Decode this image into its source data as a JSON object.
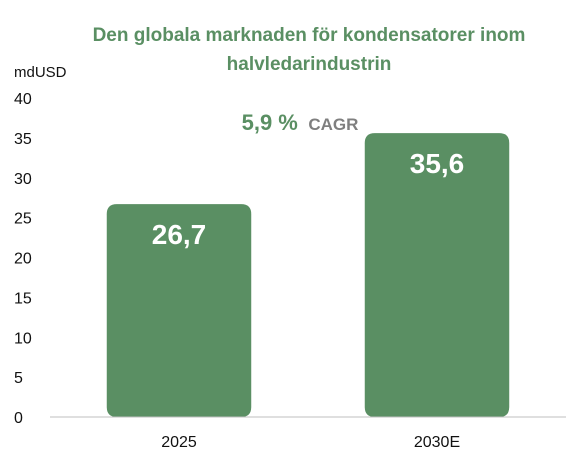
{
  "chart_data": {
    "type": "bar",
    "title": "Den globala marknaden för kondensatorer inom halvledarindustrin",
    "title_lines": [
      "Den globala marknaden för kondensatorer inom",
      "halvledarindustrin"
    ],
    "ylabel": "mdUSD",
    "categories": [
      "2025",
      "2030E"
    ],
    "values": [
      26.7,
      35.6
    ],
    "data_labels": [
      "26,7",
      "35,6"
    ],
    "ylim": [
      0,
      40
    ],
    "yticks": [
      0,
      5,
      10,
      15,
      20,
      25,
      30,
      35,
      40
    ],
    "grid": false,
    "legend": "none",
    "annotation": {
      "value": "5,9 %",
      "label": "CAGR"
    },
    "colors": {
      "bar": "#5a8f63",
      "title": "#5a8f63",
      "annotation_label": "#7f7f7f",
      "axis": "#bfbfbf"
    }
  }
}
